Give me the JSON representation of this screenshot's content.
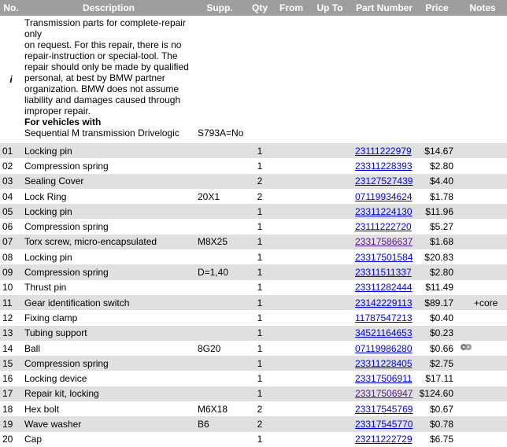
{
  "table": {
    "headers": [
      "No.",
      "Description",
      "Supp.",
      "Qty",
      "From",
      "Up To",
      "Part Number",
      "Price",
      "Notes"
    ],
    "info": {
      "marker": "i",
      "lines": [
        "Transmission parts for complete-repair only",
        "on request. For this repair, there is no repair-instruction or special-tool. The repair should only be made by qualified personal, at best by BMW partner organization. BMW does not assume liability and damages caused through improper repair."
      ],
      "bold": "For vehicles with",
      "vehicle": "Sequential M transmission Drivelogic",
      "supp": "S793A=No"
    },
    "rows": [
      {
        "no": "01",
        "description": "Locking pin",
        "qty": 1,
        "part": "23111222979",
        "price": "$14.67"
      },
      {
        "no": "02",
        "description": "Compression spring",
        "qty": 1,
        "part": "23311228393",
        "price": "$2.80"
      },
      {
        "no": "03",
        "description": "Sealing Cover",
        "qty": 2,
        "part": "23127527439",
        "price": "$4.40"
      },
      {
        "no": "04",
        "description": "Lock Ring",
        "supp": "20X1",
        "qty": 2,
        "part": "07119934624",
        "price": "$1.78"
      },
      {
        "no": "05",
        "description": "Locking pin",
        "qty": 1,
        "part": "23311224130",
        "price": "$11.96"
      },
      {
        "no": "06",
        "description": "Compression spring",
        "qty": 1,
        "part": "23111222720",
        "price": "$5.27"
      },
      {
        "no": "07",
        "description": "Torx screw, micro-encapsulated",
        "supp": "M8X25",
        "qty": 1,
        "part": "23317586637",
        "price": "$1.68",
        "visited": true
      },
      {
        "no": "08",
        "description": "Locking pin",
        "qty": 1,
        "part": "23317501584",
        "price": "$20.83"
      },
      {
        "no": "09",
        "description": "Compression spring",
        "supp": "D=1,40",
        "qty": 1,
        "part": "23311511337",
        "price": "$2.80"
      },
      {
        "no": "10",
        "description": "Thrust pin",
        "qty": 1,
        "part": "23311282444",
        "price": "$11.49"
      },
      {
        "no": "11",
        "description": "Gear identification switch",
        "qty": 1,
        "part": "23142229113",
        "price": "$89.17",
        "notes": "+core"
      },
      {
        "no": "12",
        "description": "Fixing clamp",
        "qty": 1,
        "part": "11787547213",
        "price": "$0.40"
      },
      {
        "no": "13",
        "description": "Tubing support",
        "qty": 1,
        "part": "34521164653",
        "price": "$0.23"
      },
      {
        "no": "14",
        "description": "Ball",
        "supp": "8G20",
        "qty": 1,
        "part": "07119986280",
        "price": "$0.66",
        "icon": true
      },
      {
        "no": "15",
        "description": "Compression spring",
        "qty": 1,
        "part": "23311228405",
        "price": "$2.75"
      },
      {
        "no": "16",
        "description": "Locking device",
        "qty": 1,
        "part": "23317506911",
        "price": "$17.11"
      },
      {
        "no": "17",
        "description": "Repair kit, locking",
        "qty": 1,
        "part": "23317506947",
        "price": "$124.60",
        "visited": true
      },
      {
        "no": "18",
        "description": "Hex bolt",
        "supp": "M6X18",
        "qty": 2,
        "part": "23317545769",
        "price": "$0.67"
      },
      {
        "no": "19",
        "description": "Wave washer",
        "supp": "B6",
        "qty": 2,
        "part": "23317545770",
        "price": "$0.78"
      },
      {
        "no": "20",
        "description": "Cap",
        "qty": 1,
        "part": "23211222729",
        "price": "$6.75"
      }
    ]
  }
}
